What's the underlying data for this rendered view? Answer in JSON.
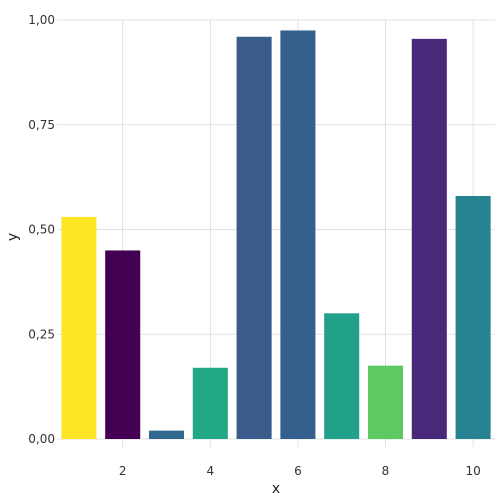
{
  "chart_data": {
    "type": "bar",
    "xlabel": "x",
    "ylabel": "y",
    "x": [
      1,
      2,
      3,
      4,
      5,
      6,
      7,
      8,
      9,
      10
    ],
    "values": [
      0.53,
      0.45,
      0.02,
      0.17,
      0.96,
      0.975,
      0.3,
      0.175,
      0.955,
      0.58
    ],
    "colors": [
      "#fde725",
      "#440154",
      "#31688e",
      "#22a884",
      "#3b5b8c",
      "#355f8d",
      "#21a189",
      "#5ec962",
      "#482878",
      "#26838f"
    ],
    "xlim": [
      0.5,
      10.5
    ],
    "ylim": [
      0,
      1.0
    ],
    "xticks": [
      2,
      4,
      6,
      8,
      10
    ],
    "xtick_labels": [
      "2",
      "4",
      "6",
      "8",
      "10"
    ],
    "yticks": [
      0,
      0.25,
      0.5,
      0.75,
      1.0
    ],
    "ytick_labels": [
      "0,00",
      "0,25",
      "0,50",
      "0,75",
      "1,00"
    ],
    "grid": true,
    "legend": "none"
  }
}
